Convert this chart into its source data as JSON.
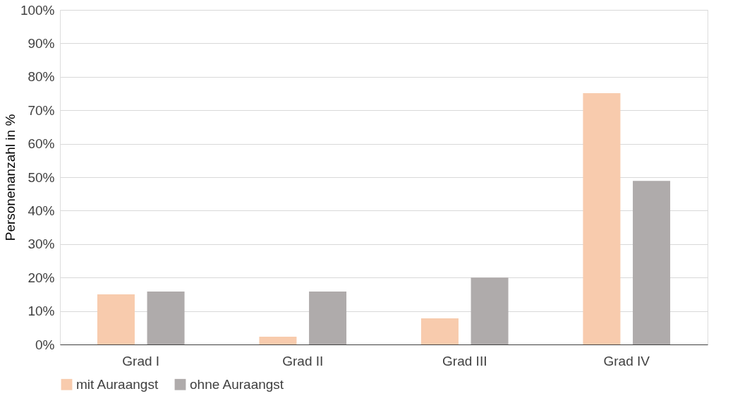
{
  "chart_data": {
    "type": "bar",
    "ylabel": "Personenanzahl  in %",
    "categories": [
      "Grad I",
      "Grad II",
      "Grad III",
      "Grad IV"
    ],
    "series": [
      {
        "name": "mit Auraangst",
        "color": "#f8cbad",
        "values": [
          15.0,
          2.3,
          7.8,
          75.1
        ]
      },
      {
        "name": "ohne Auraangst",
        "color": "#afabab",
        "values": [
          15.8,
          15.8,
          20.0,
          48.9
        ]
      }
    ],
    "ylim": [
      0,
      100
    ],
    "yticks": [
      {
        "value": 0,
        "label": "0%"
      },
      {
        "value": 10,
        "label": "10%"
      },
      {
        "value": 20,
        "label": "20%"
      },
      {
        "value": 30,
        "label": "30%"
      },
      {
        "value": 40,
        "label": "40%"
      },
      {
        "value": 50,
        "label": "50%"
      },
      {
        "value": 60,
        "label": "60%"
      },
      {
        "value": 70,
        "label": "70%"
      },
      {
        "value": 80,
        "label": "80%"
      },
      {
        "value": 90,
        "label": "90%"
      },
      {
        "value": 100,
        "label": "100%"
      }
    ],
    "grid": "y",
    "legend": "bottom left"
  }
}
